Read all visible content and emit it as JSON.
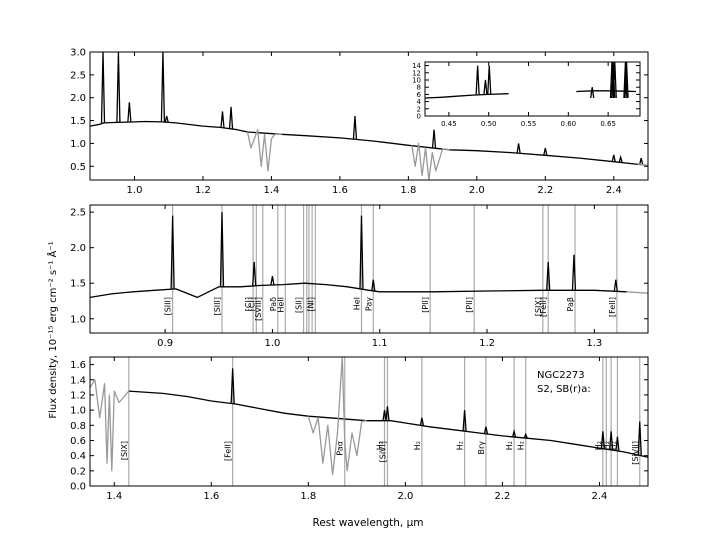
{
  "figure": {
    "ylabel": "Flux density, 10⁻¹⁵ erg cm⁻² s⁻¹ Å⁻¹",
    "xlabel": "Rest wavelength, μm",
    "annotation_name": "NGC2273",
    "annotation_type": "S2,  SB(r)a:"
  },
  "chart_data": [
    {
      "panel": "top",
      "type": "line",
      "xlim": [
        0.87,
        2.5
      ],
      "ylim": [
        0.2,
        3.0
      ],
      "xticks": [
        "1.0",
        "1.2",
        "1.4",
        "1.6",
        "1.8",
        "2.0",
        "2.2",
        "2.4"
      ],
      "yticks": [
        "0.5",
        "1.0",
        "1.5",
        "2.0",
        "2.5",
        "3.0"
      ],
      "series": [
        {
          "color": "#000000",
          "points": [
            [
              0.87,
              1.38
            ],
            [
              0.9,
              1.42
            ],
            [
              0.91,
              1.45
            ],
            [
              0.95,
              1.46
            ],
            [
              1.0,
              1.47
            ],
            [
              1.03,
              1.48
            ],
            [
              1.08,
              1.47
            ],
            [
              1.12,
              1.45
            ],
            [
              1.2,
              1.38
            ],
            [
              1.25,
              1.35
            ],
            [
              1.3,
              1.3
            ],
            [
              1.33,
              1.25
            ],
            [
              1.43,
              1.2
            ],
            [
              1.5,
              1.17
            ],
            [
              1.6,
              1.12
            ],
            [
              1.7,
              1.05
            ],
            [
              1.8,
              0.96
            ],
            [
              1.92,
              0.86
            ],
            [
              2.0,
              0.84
            ],
            [
              2.1,
              0.8
            ],
            [
              2.2,
              0.74
            ],
            [
              2.3,
              0.68
            ],
            [
              2.4,
              0.6
            ],
            [
              2.5,
              0.52
            ]
          ],
          "spikes": [
            [
              0.908,
              3.0
            ],
            [
              0.953,
              3.0
            ],
            [
              1.083,
              3.0
            ],
            [
              0.985,
              1.9
            ],
            [
              1.094,
              1.6
            ],
            [
              1.257,
              1.7
            ],
            [
              1.282,
              1.8
            ],
            [
              1.644,
              1.6
            ],
            [
              1.875,
              1.3
            ],
            [
              2.122,
              1.0
            ],
            [
              2.2,
              0.9
            ],
            [
              2.4,
              0.75
            ],
            [
              2.42,
              0.7
            ],
            [
              2.48,
              0.68
            ]
          ]
        },
        {
          "color": "#999999",
          "points": [
            [
              1.33,
              1.25
            ],
            [
              1.34,
              0.9
            ],
            [
              1.36,
              1.3
            ],
            [
              1.37,
              0.5
            ],
            [
              1.38,
              1.2
            ],
            [
              1.39,
              0.4
            ],
            [
              1.4,
              1.1
            ],
            [
              1.41,
              1.2
            ],
            [
              1.43,
              1.2
            ]
          ],
          "points_b": [
            [
              1.81,
              0.96
            ],
            [
              1.82,
              0.5
            ],
            [
              1.83,
              1.0
            ],
            [
              1.84,
              0.3
            ],
            [
              1.85,
              0.9
            ],
            [
              1.86,
              0.2
            ],
            [
              1.87,
              0.8
            ],
            [
              1.88,
              0.4
            ],
            [
              1.9,
              0.88
            ],
            [
              1.92,
              0.86
            ]
          ],
          "points_c": [
            [
              2.47,
              0.55
            ],
            [
              2.5,
              0.52
            ]
          ]
        }
      ]
    },
    {
      "panel": "top-inset",
      "type": "line",
      "xlim": [
        0.42,
        0.69
      ],
      "ylim": [
        0,
        15
      ],
      "xticks": [
        "0.45",
        "0.50",
        "0.55",
        "0.60",
        "0.65"
      ],
      "yticks": [
        "0",
        "2",
        "4",
        "6",
        "8",
        "10",
        "12",
        "14"
      ],
      "series": [
        {
          "color": "#000000",
          "points": [
            [
              0.42,
              5.0
            ],
            [
              0.44,
              5.2
            ],
            [
              0.46,
              5.5
            ],
            [
              0.48,
              5.8
            ],
            [
              0.5,
              6.0
            ],
            [
              0.525,
              6.2
            ]
          ],
          "points_b": [
            [
              0.61,
              6.8
            ],
            [
              0.63,
              7.0
            ],
            [
              0.65,
              7.0
            ],
            [
              0.67,
              6.9
            ],
            [
              0.685,
              6.8
            ]
          ],
          "spikes": [
            [
              0.4861,
              14
            ],
            [
              0.4959,
              10
            ],
            [
              0.5007,
              14
            ],
            [
              0.63,
              8
            ],
            [
              0.6548,
              15
            ],
            [
              0.6563,
              15
            ],
            [
              0.6583,
              15
            ],
            [
              0.6717,
              15
            ],
            [
              0.6731,
              15
            ]
          ]
        }
      ]
    },
    {
      "panel": "middle",
      "type": "line",
      "xlim": [
        0.83,
        1.35
      ],
      "ylim": [
        0.8,
        2.6
      ],
      "xticks": [
        "0.9",
        "1.0",
        "1.1",
        "1.2",
        "1.3"
      ],
      "yticks": [
        "1.0",
        "1.5",
        "2.0",
        "2.5"
      ],
      "series": [
        {
          "color": "#000000",
          "points": [
            [
              0.83,
              1.3
            ],
            [
              0.85,
              1.35
            ],
            [
              0.87,
              1.38
            ],
            [
              0.89,
              1.4
            ],
            [
              0.91,
              1.42
            ],
            [
              0.93,
              1.3
            ],
            [
              0.95,
              1.45
            ],
            [
              0.97,
              1.45
            ],
            [
              0.99,
              1.47
            ],
            [
              1.01,
              1.48
            ],
            [
              1.03,
              1.5
            ],
            [
              1.05,
              1.48
            ],
            [
              1.07,
              1.45
            ],
            [
              1.09,
              1.4
            ],
            [
              1.1,
              1.38
            ],
            [
              1.15,
              1.38
            ],
            [
              1.2,
              1.39
            ],
            [
              1.25,
              1.4
            ],
            [
              1.3,
              1.4
            ],
            [
              1.33,
              1.38
            ]
          ],
          "spikes": [
            [
              0.907,
              2.45
            ],
            [
              0.953,
              2.5
            ],
            [
              0.983,
              1.8
            ],
            [
              1.0,
              1.6
            ],
            [
              1.083,
              2.45
            ],
            [
              1.094,
              1.55
            ],
            [
              1.257,
              1.8
            ],
            [
              1.281,
              1.9
            ],
            [
              1.32,
              1.55
            ]
          ]
        },
        {
          "color": "#999999",
          "points": [
            [
              1.33,
              1.38
            ],
            [
              1.35,
              1.36
            ]
          ]
        }
      ],
      "lines": [
        {
          "x": 0.907,
          "label": "[SIII]"
        },
        {
          "x": 0.953,
          "label": "[SIII]"
        },
        {
          "x": 0.982,
          "label": "[CI]"
        },
        {
          "x": 0.985,
          "label": "[CI]"
        },
        {
          "x": 0.991,
          "label": "[SVIII]"
        },
        {
          "x": 1.005,
          "label": "Paδ"
        },
        {
          "x": 1.012,
          "label": "HeII"
        },
        {
          "x": 1.029,
          "label": "[SII]"
        },
        {
          "x": 1.032,
          "label": ""
        },
        {
          "x": 1.034,
          "label": ""
        },
        {
          "x": 1.037,
          "label": ""
        },
        {
          "x": 1.04,
          "label": "[NI]"
        },
        {
          "x": 1.083,
          "label": "HeI"
        },
        {
          "x": 1.094,
          "label": "Paγ"
        },
        {
          "x": 1.147,
          "label": "[PII]"
        },
        {
          "x": 1.188,
          "label": "[PII]"
        },
        {
          "x": 1.252,
          "label": "[SIX]"
        },
        {
          "x": 1.257,
          "label": "[FeII]"
        },
        {
          "x": 1.282,
          "label": "Paβ"
        },
        {
          "x": 1.321,
          "label": "[FeII]"
        }
      ]
    },
    {
      "panel": "bottom",
      "type": "line",
      "xlim": [
        1.35,
        2.5
      ],
      "ylim": [
        0.0,
        1.7
      ],
      "xticks": [
        "1.4",
        "1.6",
        "1.8",
        "2.0",
        "2.2",
        "2.4"
      ],
      "yticks": [
        "0.0",
        "0.2",
        "0.4",
        "0.6",
        "0.8",
        "1.0",
        "1.2",
        "1.4",
        "1.6"
      ],
      "series": [
        {
          "color": "#000000",
          "points": [
            [
              1.43,
              1.25
            ],
            [
              1.5,
              1.22
            ],
            [
              1.55,
              1.18
            ],
            [
              1.6,
              1.12
            ],
            [
              1.65,
              1.08
            ],
            [
              1.7,
              1.02
            ],
            [
              1.75,
              0.96
            ],
            [
              1.8,
              0.92
            ],
            [
              1.92,
              0.86
            ],
            [
              1.97,
              0.86
            ],
            [
              2.0,
              0.83
            ],
            [
              2.05,
              0.78
            ],
            [
              2.1,
              0.74
            ],
            [
              2.15,
              0.7
            ],
            [
              2.2,
              0.66
            ],
            [
              2.25,
              0.63
            ],
            [
              2.3,
              0.6
            ],
            [
              2.35,
              0.55
            ],
            [
              2.4,
              0.5
            ],
            [
              2.45,
              0.45
            ],
            [
              2.5,
              0.38
            ]
          ],
          "spikes": [
            [
              1.644,
              1.55
            ],
            [
              1.957,
              1.0
            ],
            [
              1.963,
              1.05
            ],
            [
              2.034,
              0.9
            ],
            [
              2.122,
              1.0
            ],
            [
              2.166,
              0.78
            ],
            [
              2.224,
              0.72
            ],
            [
              2.248,
              0.68
            ],
            [
              2.407,
              0.72
            ],
            [
              2.424,
              0.72
            ],
            [
              2.437,
              0.65
            ],
            [
              2.483,
              0.85
            ]
          ]
        },
        {
          "color": "#999999",
          "points": [
            [
              1.35,
              1.3
            ],
            [
              1.36,
              1.4
            ],
            [
              1.37,
              0.9
            ],
            [
              1.38,
              1.35
            ],
            [
              1.385,
              0.3
            ],
            [
              1.39,
              1.2
            ],
            [
              1.395,
              0.2
            ],
            [
              1.4,
              1.25
            ],
            [
              1.41,
              1.1
            ],
            [
              1.43,
              1.25
            ]
          ],
          "points_b": [
            [
              1.8,
              0.92
            ],
            [
              1.81,
              0.7
            ],
            [
              1.82,
              0.9
            ],
            [
              1.83,
              0.3
            ],
            [
              1.84,
              0.8
            ],
            [
              1.85,
              0.15
            ],
            [
              1.86,
              0.7
            ],
            [
              1.87,
              1.7
            ],
            [
              1.875,
              0.6
            ],
            [
              1.88,
              0.2
            ],
            [
              1.89,
              0.7
            ],
            [
              1.9,
              0.4
            ],
            [
              1.91,
              0.85
            ],
            [
              1.92,
              0.86
            ]
          ]
        }
      ],
      "lines": [
        {
          "x": 1.43,
          "label": "[SIX]"
        },
        {
          "x": 1.644,
          "label": "[FeII]"
        },
        {
          "x": 1.875,
          "label": "Paα"
        },
        {
          "x": 1.957,
          "label": "H₂"
        },
        {
          "x": 1.963,
          "label": "[SiVI]"
        },
        {
          "x": 2.034,
          "label": "H₂"
        },
        {
          "x": 2.122,
          "label": "H₂"
        },
        {
          "x": 2.166,
          "label": "Brγ"
        },
        {
          "x": 2.224,
          "label": "H₂"
        },
        {
          "x": 2.248,
          "label": "H₂"
        },
        {
          "x": 2.407,
          "label": "H₂"
        },
        {
          "x": 2.414,
          "label": "H₂"
        },
        {
          "x": 2.424,
          "label": "H₂"
        },
        {
          "x": 2.437,
          "label": "H₂"
        },
        {
          "x": 2.483,
          "label": "[SiVII]"
        }
      ]
    }
  ]
}
